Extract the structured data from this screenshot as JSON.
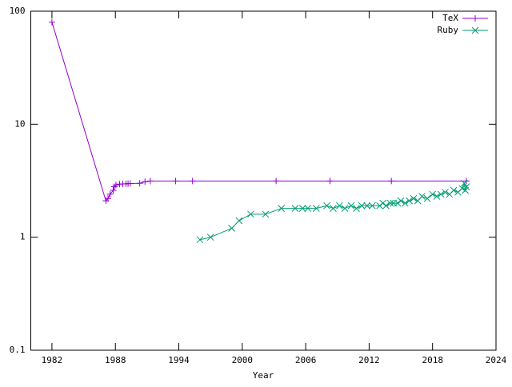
{
  "chart_data": {
    "type": "line",
    "x_label": "Year",
    "log_y": true,
    "legend": "top-right",
    "xlim": [
      1980,
      2024
    ],
    "xticks": [
      1982,
      1988,
      1994,
      2000,
      2006,
      2012,
      2018,
      2024
    ],
    "ylim": [
      0.1,
      100
    ],
    "yticks": [
      0.1,
      1,
      10,
      100
    ],
    "series": [
      {
        "name": "TeX",
        "color": "#9400d3",
        "marker": "+",
        "x": [
          1982,
          1987.1,
          1987.3,
          1987.5,
          1987.8,
          1987.9,
          1988.05,
          1988.4,
          1988.7,
          1989.0,
          1989.2,
          1989.4,
          1990.3,
          1990.8,
          1991.3,
          1993.7,
          1995.3,
          2003.2,
          2008.3,
          2014.1,
          2021.2
        ],
        "values": [
          80,
          2.1,
          2.2,
          2.4,
          2.6,
          2.8,
          2.9,
          2.95,
          2.96,
          2.97,
          2.98,
          2.99,
          3.0,
          3.1,
          3.14,
          3.14,
          3.14,
          3.14,
          3.14,
          3.14,
          3.14
        ]
      },
      {
        "name": "Ruby",
        "color": "#009e73",
        "marker": "x",
        "x": [
          1996.0,
          1997.0,
          1999.0,
          1999.7,
          2000.8,
          2002.2,
          2003.7,
          2005.0,
          2005.7,
          2006.2,
          2007.0,
          2008.0,
          2008.6,
          2009.2,
          2009.7,
          2010.3,
          2010.8,
          2011.3,
          2011.8,
          2012.3,
          2013.0,
          2013.3,
          2013.6,
          2014.0,
          2014.3,
          2014.7,
          2015.0,
          2015.4,
          2015.8,
          2016.2,
          2016.6,
          2017.0,
          2017.5,
          2018.0,
          2018.4,
          2018.8,
          2019.2,
          2019.6,
          2020.0,
          2020.4,
          2020.8,
          2021.0,
          2021.1,
          2021.2
        ],
        "values": [
          0.95,
          1.0,
          1.2,
          1.4,
          1.6,
          1.6,
          1.8,
          1.8,
          1.8,
          1.8,
          1.8,
          1.9,
          1.8,
          1.9,
          1.8,
          1.9,
          1.8,
          1.9,
          1.9,
          1.9,
          1.9,
          2.0,
          1.9,
          2.0,
          2.0,
          2.0,
          2.1,
          2.0,
          2.1,
          2.2,
          2.1,
          2.3,
          2.2,
          2.4,
          2.3,
          2.4,
          2.5,
          2.4,
          2.6,
          2.5,
          2.7,
          3.0,
          2.6,
          2.8
        ]
      }
    ]
  }
}
